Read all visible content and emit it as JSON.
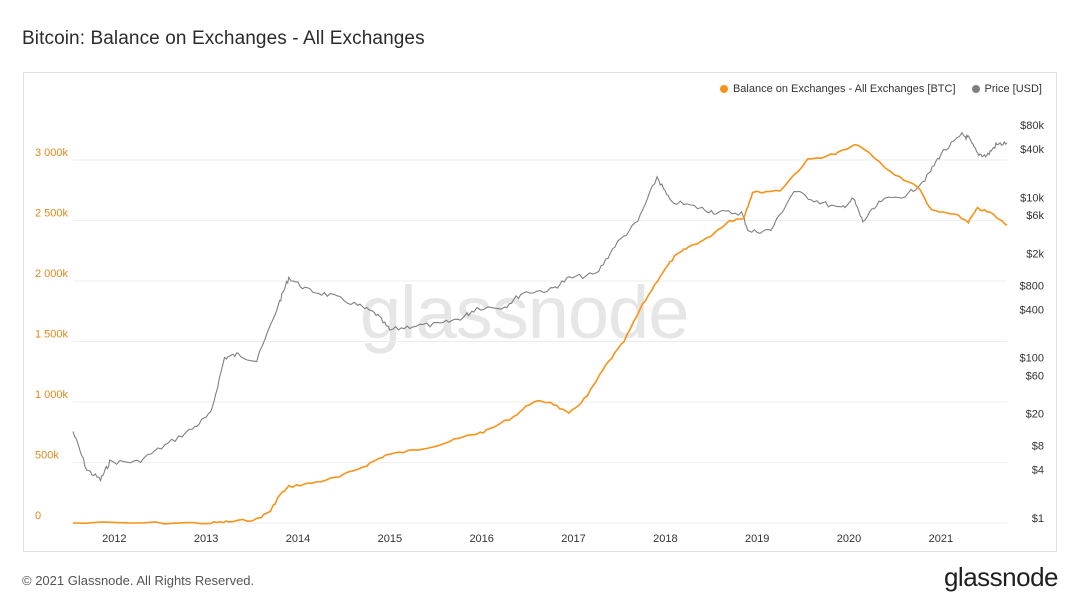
{
  "title": "Bitcoin: Balance on Exchanges - All Exchanges",
  "footer": "© 2021 Glassnode. All Rights Reserved.",
  "brand": "glassnode",
  "watermark": "glassnode",
  "colors": {
    "balance": "#f7931a",
    "price": "#808080",
    "grid": "#eeeeee",
    "left_axis": "#e0891c"
  },
  "chart_data": {
    "type": "line",
    "title": "Bitcoin: Balance on Exchanges - All Exchanges",
    "legend": {
      "position": "top-right",
      "entries": [
        "Balance on Exchanges - All Exchanges [BTC]",
        "Price [USD]"
      ]
    },
    "grid": true,
    "x_ticks": [
      "2012",
      "2013",
      "2014",
      "2015",
      "2016",
      "2017",
      "2018",
      "2019",
      "2020",
      "2021"
    ],
    "x_range": [
      2011.6,
      2021.77
    ],
    "y_left": {
      "ticks": [
        "0",
        "500k",
        "1 000k",
        "1 500k",
        "2 000k",
        "2 500k",
        "3 000k"
      ],
      "range": [
        0,
        3000000
      ],
      "scale": "linear"
    },
    "y_right": {
      "ticks": [
        "$1",
        "$4",
        "$8",
        "$20",
        "$60",
        "$100",
        "$400",
        "$800",
        "$2k",
        "$6k",
        "$10k",
        "$40k",
        "$80k"
      ],
      "tick_values": [
        1,
        4,
        8,
        20,
        60,
        100,
        400,
        800,
        2000,
        6000,
        10000,
        40000,
        80000
      ],
      "scale": "log"
    },
    "series": [
      {
        "name": "Balance on Exchanges - All Exchanges [BTC]",
        "axis": "left",
        "points": [
          [
            2011.6,
            0
          ],
          [
            2012.5,
            0
          ],
          [
            2013.1,
            0
          ],
          [
            2013.3,
            10000
          ],
          [
            2013.6,
            30000
          ],
          [
            2013.75,
            100000
          ],
          [
            2013.85,
            230000
          ],
          [
            2013.95,
            300000
          ],
          [
            2014.2,
            330000
          ],
          [
            2014.5,
            380000
          ],
          [
            2014.8,
            480000
          ],
          [
            2015.0,
            560000
          ],
          [
            2015.3,
            600000
          ],
          [
            2015.6,
            650000
          ],
          [
            2015.9,
            720000
          ],
          [
            2016.1,
            760000
          ],
          [
            2016.4,
            880000
          ],
          [
            2016.6,
            1000000
          ],
          [
            2016.8,
            1000000
          ],
          [
            2017.0,
            900000
          ],
          [
            2017.2,
            1050000
          ],
          [
            2017.4,
            1300000
          ],
          [
            2017.6,
            1500000
          ],
          [
            2017.8,
            1800000
          ],
          [
            2018.0,
            2050000
          ],
          [
            2018.15,
            2200000
          ],
          [
            2018.3,
            2280000
          ],
          [
            2018.5,
            2350000
          ],
          [
            2018.75,
            2500000
          ],
          [
            2018.9,
            2520000
          ],
          [
            2019.0,
            2730000
          ],
          [
            2019.3,
            2750000
          ],
          [
            2019.6,
            3000000
          ],
          [
            2019.9,
            3050000
          ],
          [
            2020.15,
            3130000
          ],
          [
            2020.5,
            2900000
          ],
          [
            2020.8,
            2780000
          ],
          [
            2020.95,
            2580000
          ],
          [
            2021.2,
            2550000
          ],
          [
            2021.35,
            2490000
          ],
          [
            2021.45,
            2600000
          ],
          [
            2021.6,
            2560000
          ],
          [
            2021.77,
            2460000
          ]
        ]
      },
      {
        "name": "Price [USD]",
        "axis": "right",
        "points": [
          [
            2011.6,
            12
          ],
          [
            2011.75,
            4
          ],
          [
            2011.9,
            3
          ],
          [
            2012.0,
            5
          ],
          [
            2012.3,
            5
          ],
          [
            2012.6,
            8
          ],
          [
            2012.9,
            13
          ],
          [
            2013.1,
            20
          ],
          [
            2013.25,
            100
          ],
          [
            2013.4,
            110
          ],
          [
            2013.6,
            90
          ],
          [
            2013.85,
            500
          ],
          [
            2013.95,
            1000
          ],
          [
            2014.15,
            700
          ],
          [
            2014.4,
            600
          ],
          [
            2014.7,
            450
          ],
          [
            2014.9,
            350
          ],
          [
            2015.05,
            220
          ],
          [
            2015.3,
            250
          ],
          [
            2015.6,
            260
          ],
          [
            2015.85,
            320
          ],
          [
            2016.0,
            420
          ],
          [
            2016.3,
            430
          ],
          [
            2016.5,
            650
          ],
          [
            2016.8,
            700
          ],
          [
            2017.0,
            980
          ],
          [
            2017.3,
            1100
          ],
          [
            2017.5,
            2500
          ],
          [
            2017.75,
            5000
          ],
          [
            2017.96,
            18000
          ],
          [
            2018.1,
            9000
          ],
          [
            2018.4,
            7500
          ],
          [
            2018.6,
            6500
          ],
          [
            2018.88,
            6400
          ],
          [
            2018.96,
            3700
          ],
          [
            2019.2,
            3900
          ],
          [
            2019.45,
            12000
          ],
          [
            2019.7,
            9000
          ],
          [
            2019.95,
            7200
          ],
          [
            2020.1,
            9500
          ],
          [
            2020.2,
            5000
          ],
          [
            2020.4,
            9000
          ],
          [
            2020.7,
            11000
          ],
          [
            2020.9,
            18000
          ],
          [
            2021.05,
            35000
          ],
          [
            2021.28,
            60000
          ],
          [
            2021.35,
            55000
          ],
          [
            2021.45,
            35000
          ],
          [
            2021.55,
            33000
          ],
          [
            2021.65,
            45000
          ],
          [
            2021.77,
            48000
          ]
        ]
      }
    ]
  }
}
